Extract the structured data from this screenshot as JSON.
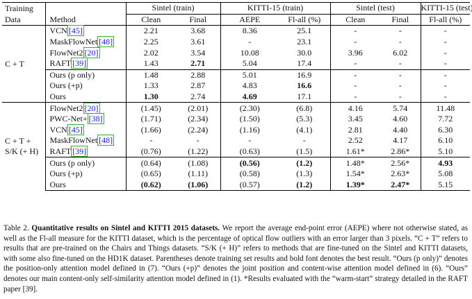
{
  "headers": {
    "training": "Training",
    "data": "Data",
    "method": "Method",
    "groups": [
      "Sintel (train)",
      "KITTI-15 (train)",
      "Sintel (test)",
      "KITTI-15 (test)"
    ],
    "metrics": [
      "Clean",
      "Final",
      "AEPE",
      "Fl-all (%)",
      "Clean",
      "Final",
      "Fl-all (%)"
    ]
  },
  "section1": {
    "training": "C + T",
    "rows": [
      {
        "method": "VCN",
        "ref": "45",
        "vals": [
          "2.21",
          "3.68",
          "8.36",
          "25.1",
          "-",
          "-",
          "-"
        ]
      },
      {
        "method": "MaskFlowNet",
        "ref": "48",
        "vals": [
          "2.25",
          "3.61",
          "-",
          "23.1",
          "-",
          "-",
          "-"
        ]
      },
      {
        "method": "FlowNet2",
        "ref": "20",
        "vals": [
          "2.02",
          "3.54",
          "10.08",
          "30.0",
          "3.96",
          "6.02",
          "-"
        ]
      },
      {
        "method": "RAFT",
        "ref": "39",
        "vals": [
          "1.43",
          "2.71",
          "5.04",
          "17.4",
          "-",
          "-",
          "-"
        ]
      }
    ],
    "ours": [
      {
        "method": "Ours (p only)",
        "vals": [
          "1.48",
          "2.88",
          "5.01",
          "16.9",
          "-",
          "-",
          "-"
        ]
      },
      {
        "method": "Ours (+p)",
        "vals": [
          "1.33",
          "2.87",
          "4.83",
          "16.6",
          "-",
          "-",
          "-"
        ]
      },
      {
        "method": "Ours",
        "vals": [
          "1.30",
          "2.74",
          "4.69",
          "17.1",
          "-",
          "-",
          "-"
        ]
      }
    ]
  },
  "section2": {
    "training_line1": "C + T +",
    "training_line2": "S/K (+ H)",
    "rows": [
      {
        "method": "FlowNet2",
        "ref": "20",
        "vals": [
          "(1.45)",
          "(2.01)",
          "(2.30)",
          "(6.8)",
          "4.16",
          "5.74",
          "11.48"
        ]
      },
      {
        "method": "PWC-Net+",
        "ref": "38",
        "vals": [
          "(1.71)",
          "(2.34)",
          "(1.50)",
          "(5.3)",
          "3.45",
          "4.60",
          "7.72"
        ]
      },
      {
        "method": "VCN",
        "ref": "45",
        "vals": [
          "(1.66)",
          "(2.24)",
          "(1.16)",
          "(4.1)",
          "2.81",
          "4.40",
          "6.30"
        ]
      },
      {
        "method": "MaskFlowNet",
        "ref": "48",
        "vals": [
          "-",
          "-",
          "-",
          "-",
          "2.52",
          "4.17",
          "6.10"
        ]
      },
      {
        "method": "RAFT",
        "ref": "39",
        "vals": [
          "(0.76)",
          "(1.22)",
          "(0.63)",
          "(1.5)",
          "1.61*",
          "2.86*",
          "5.10"
        ]
      }
    ],
    "ours": [
      {
        "method": "Ours (p only)",
        "vals": [
          "(0.64)",
          "(1.08)",
          "(0.56)",
          "(1.2)",
          "1.48*",
          "2.56*",
          "4.93"
        ]
      },
      {
        "method": "Ours (+p)",
        "vals": [
          "(0.65)",
          "(1.11)",
          "(0.58)",
          "(1.3)",
          "1.54*",
          "2.63*",
          "5.08"
        ]
      },
      {
        "method": "Ours",
        "vals": [
          "(0.62)",
          "(1.06)",
          "(0.57)",
          "(1.2)",
          "1.39*",
          "2.47*",
          "5.15"
        ]
      }
    ]
  },
  "caption": {
    "label": "Table 2.",
    "title": "Quantitative results on Sintel and KITTI 2015 datasets.",
    "body": "We report the average end-point error (AEPE) where not otherwise stated, as well as the Fl-all measure for the KITTI dataset, which is the percentage of optical flow outliers with an error larger than 3 pixels. “C + T” refers to results that are pre-trained on the Chairs and Things datasets. “S/K (+ H)” refers to methods that are fine-tuned on the Sintel and KITTI datasets, with some also fine-tuned on the HD1K dataset. Parentheses denote training set results and bold font denotes the best result. “Ours (p only)” denotes the position-only attention model defined in (7). “Ours (+p)” denotes the joint position and content-wise attention model defined in (6). “Ours” denotes our main content-only self-similarity attention model defined in (1). *Results evaluated with the “warm-start” strategy detailed in the RAFT paper [39]."
  }
}
